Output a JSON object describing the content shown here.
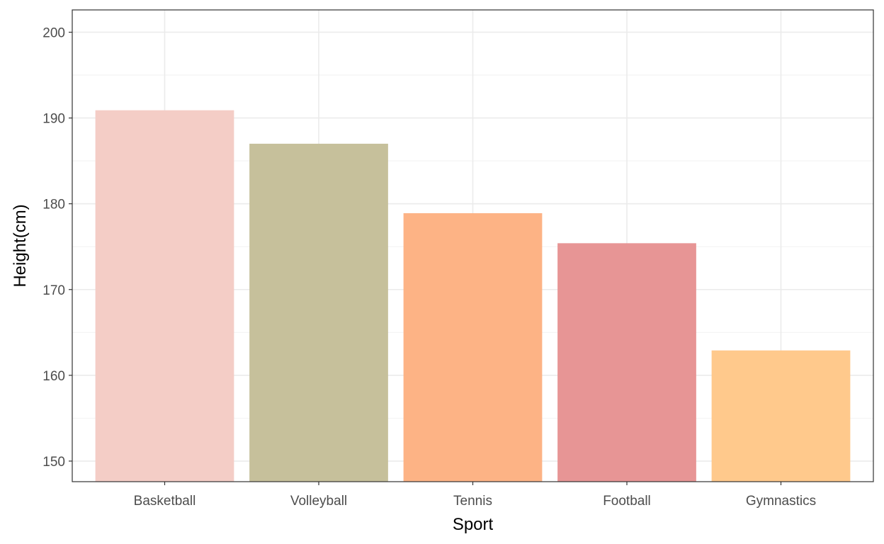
{
  "chart_data": {
    "type": "bar",
    "title": "",
    "xlabel": "Sport",
    "ylabel": "Height(cm)",
    "categories": [
      "Basketball",
      "Volleyball",
      "Tennis",
      "Football",
      "Gymnastics"
    ],
    "values": [
      190.9,
      187.0,
      178.9,
      175.4,
      162.9
    ],
    "colors": [
      "#F4CDC6",
      "#C6C09B",
      "#FDB385",
      "#E79595",
      "#FFC98C"
    ],
    "ylim": [
      147.6,
      202.6
    ],
    "yticks": [
      150,
      160,
      170,
      180,
      190,
      200
    ],
    "ytick_labels": [
      "150",
      "160",
      "170",
      "180",
      "190",
      "200"
    ],
    "grid": true,
    "legend": "none"
  }
}
